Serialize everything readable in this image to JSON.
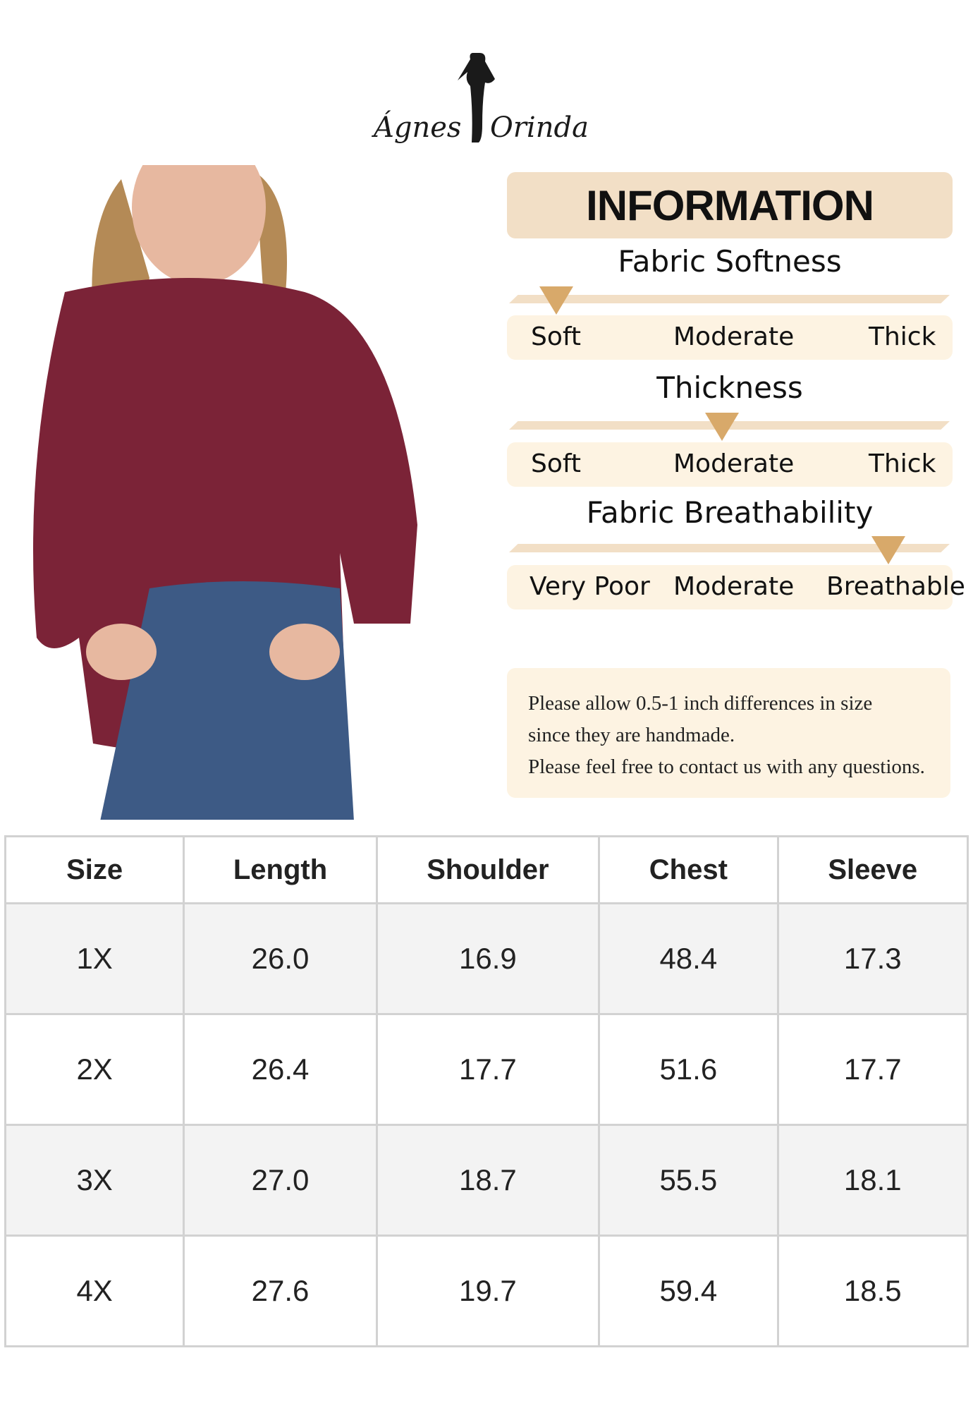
{
  "brand": {
    "logo_text": "Ágnes Orinda"
  },
  "info": {
    "title": "INFORMATION",
    "scales": [
      {
        "title": "Fabric Softness",
        "labels": [
          "Soft",
          "Moderate",
          "Thick"
        ],
        "level": 0.07
      },
      {
        "title": "Thickness",
        "labels": [
          "Soft",
          "Moderate",
          "Thick"
        ],
        "level": 0.5
      },
      {
        "title": "Fabric Breathability",
        "labels": [
          "Very Poor",
          "Moderate",
          "Breathable"
        ],
        "level": 0.87
      }
    ],
    "note_lines": [
      "Please allow 0.5-1 inch differences in size",
      "since they are handmade.",
      "Please feel free to contact us with any questions."
    ]
  },
  "size_table": {
    "headers": [
      "Size",
      "Length",
      "Shoulder",
      "Chest",
      "Sleeve"
    ],
    "rows": [
      [
        "1X",
        "26.0",
        "16.9",
        "48.4",
        "17.3"
      ],
      [
        "2X",
        "26.4",
        "17.7",
        "51.6",
        "17.7"
      ],
      [
        "3X",
        "27.0",
        "18.7",
        "55.5",
        "18.1"
      ],
      [
        "4X",
        "27.6",
        "19.7",
        "59.4",
        "18.5"
      ]
    ]
  },
  "colors": {
    "accent": "#d8a96a",
    "header_bg": "#f2dfc6",
    "label_bg": "#fdf3e2",
    "top": "#7b2337",
    "jeans": "#3d5a85"
  }
}
